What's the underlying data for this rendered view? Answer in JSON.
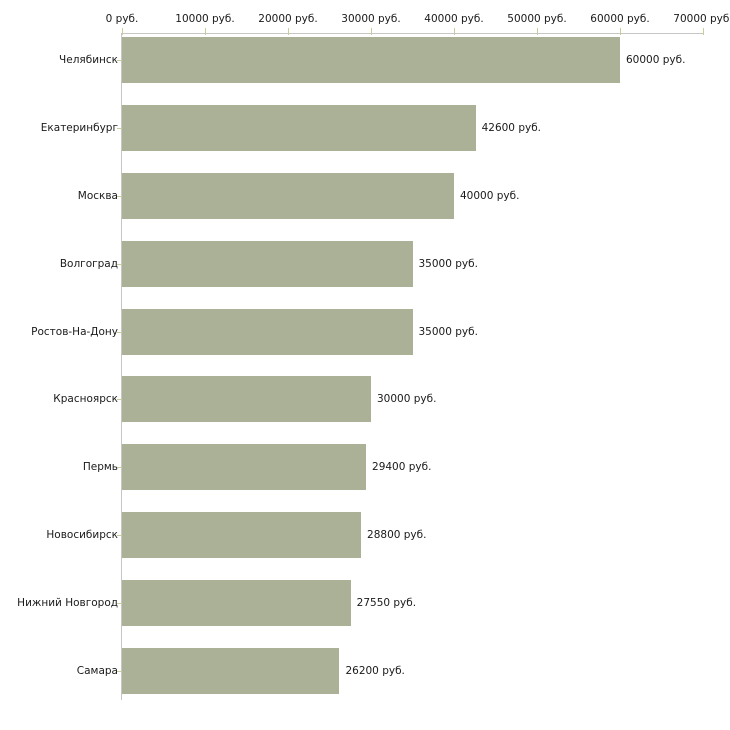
{
  "chart_data": {
    "type": "bar",
    "orientation": "horizontal",
    "categories": [
      "Челябинск",
      "Екатеринбург",
      "Москва",
      "Волгоград",
      "Ростов-На-Дону",
      "Красноярск",
      "Пермь",
      "Новосибирск",
      "Нижний Новгород",
      "Самара"
    ],
    "values": [
      60000,
      42600,
      40000,
      35000,
      35000,
      30000,
      29400,
      28800,
      27550,
      26200
    ],
    "value_labels": [
      "60000 руб.",
      "42600 руб.",
      "40000 руб.",
      "35000 руб.",
      "35000 руб.",
      "30000 руб.",
      "29400 руб.",
      "28800 руб.",
      "27550 руб.",
      "26200 руб."
    ],
    "x_axis": {
      "position": "top",
      "range": [
        0,
        70000
      ],
      "ticks": [
        0,
        10000,
        20000,
        30000,
        40000,
        50000,
        60000,
        70000
      ],
      "tick_labels": [
        "0 руб.",
        "10000 руб.",
        "20000 руб.",
        "30000 руб.",
        "40000 руб.",
        "50000 руб.",
        "60000 руб.",
        "70000 руб."
      ]
    },
    "grid": false,
    "legend": false,
    "colors": {
      "bar": "#aab197",
      "axis_line": "#c6c6c6",
      "tick_mark": "#cccc99",
      "text": "#1a1a1a",
      "background": "#ffffff"
    }
  }
}
